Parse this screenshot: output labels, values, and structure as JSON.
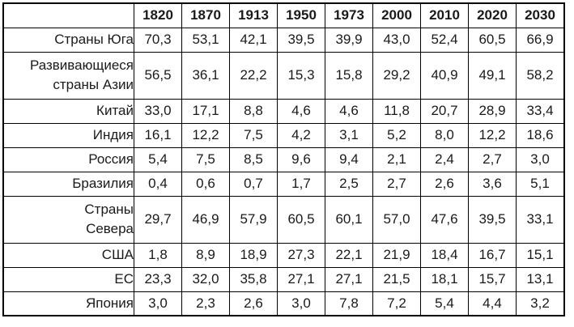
{
  "table": {
    "corner_label": "",
    "columns": [
      "1820",
      "1870",
      "1913",
      "1950",
      "1973",
      "2000",
      "2010",
      "2020",
      "2030"
    ],
    "rows": [
      {
        "label": "Страны Юга",
        "values": [
          "70,3",
          "53,1",
          "42,1",
          "39,5",
          "39,9",
          "43,0",
          "52,4",
          "60,5",
          "66,9"
        ]
      },
      {
        "label": "Развивающиеся\nстраны Азии",
        "values": [
          "56,5",
          "36,1",
          "22,2",
          "15,3",
          "15,8",
          "29,2",
          "40,9",
          "49,1",
          "58,2"
        ]
      },
      {
        "label": "Китай",
        "values": [
          "33,0",
          "17,1",
          "8,8",
          "4,6",
          "4,6",
          "11,8",
          "20,7",
          "28,9",
          "33,4"
        ]
      },
      {
        "label": "Индия",
        "values": [
          "16,1",
          "12,2",
          "7,5",
          "4,2",
          "3,1",
          "5,2",
          "8,0",
          "12,2",
          "18,6"
        ]
      },
      {
        "label": "Россия",
        "values": [
          "5,4",
          "7,5",
          "8,5",
          "9,6",
          "9,4",
          "2,1",
          "2,4",
          "2,7",
          "3,0"
        ]
      },
      {
        "label": "Бразилия",
        "values": [
          "0,4",
          "0,6",
          "0,7",
          "1,7",
          "2,5",
          "2,7",
          "2,6",
          "3,6",
          "5,1"
        ]
      },
      {
        "label": "Страны\nСевера",
        "values": [
          "29,7",
          "46,9",
          "57,9",
          "60,5",
          "60,1",
          "57,0",
          "47,6",
          "39,5",
          "33,1"
        ]
      },
      {
        "label": "США",
        "values": [
          "1,8",
          "8,9",
          "18,9",
          "27,3",
          "22,1",
          "21,9",
          "18,4",
          "16,7",
          "15,1"
        ]
      },
      {
        "label": "ЕС",
        "values": [
          "23,3",
          "32,0",
          "35,8",
          "27,1",
          "27,1",
          "21,5",
          "18,1",
          "15,7",
          "13,1"
        ]
      },
      {
        "label": "Япония",
        "values": [
          "3,0",
          "2,3",
          "2,6",
          "3,0",
          "7,8",
          "7,2",
          "5,4",
          "4,4",
          "3,2"
        ]
      }
    ]
  },
  "colors": {
    "border": "#000000",
    "text": "#1a1a1a",
    "background": "#ffffff"
  },
  "chart_data": {
    "type": "table",
    "categories": [
      "1820",
      "1870",
      "1913",
      "1950",
      "1973",
      "2000",
      "2010",
      "2020",
      "2030"
    ],
    "series": [
      {
        "name": "Страны Юга",
        "values": [
          70.3,
          53.1,
          42.1,
          39.5,
          39.9,
          43.0,
          52.4,
          60.5,
          66.9
        ]
      },
      {
        "name": "Развивающиеся страны Азии",
        "values": [
          56.5,
          36.1,
          22.2,
          15.3,
          15.8,
          29.2,
          40.9,
          49.1,
          58.2
        ]
      },
      {
        "name": "Китай",
        "values": [
          33.0,
          17.1,
          8.8,
          4.6,
          4.6,
          11.8,
          20.7,
          28.9,
          33.4
        ]
      },
      {
        "name": "Индия",
        "values": [
          16.1,
          12.2,
          7.5,
          4.2,
          3.1,
          5.2,
          8.0,
          12.2,
          18.6
        ]
      },
      {
        "name": "Россия",
        "values": [
          5.4,
          7.5,
          8.5,
          9.6,
          9.4,
          2.1,
          2.4,
          2.7,
          3.0
        ]
      },
      {
        "name": "Бразилия",
        "values": [
          0.4,
          0.6,
          0.7,
          1.7,
          2.5,
          2.7,
          2.6,
          3.6,
          5.1
        ]
      },
      {
        "name": "Страны Севера",
        "values": [
          29.7,
          46.9,
          57.9,
          60.5,
          60.1,
          57.0,
          47.6,
          39.5,
          33.1
        ]
      },
      {
        "name": "США",
        "values": [
          1.8,
          8.9,
          18.9,
          27.3,
          22.1,
          21.9,
          18.4,
          16.7,
          15.1
        ]
      },
      {
        "name": "ЕС",
        "values": [
          23.3,
          32.0,
          35.8,
          27.1,
          27.1,
          21.5,
          18.1,
          15.7,
          13.1
        ]
      },
      {
        "name": "Япония",
        "values": [
          3.0,
          2.3,
          2.6,
          3.0,
          7.8,
          7.2,
          5.4,
          4.4,
          3.2
        ]
      }
    ],
    "title": "",
    "xlabel": "",
    "ylabel": "",
    "legend": false,
    "grid": true,
    "note": "Shares in percent, decimal comma formatting as displayed"
  }
}
